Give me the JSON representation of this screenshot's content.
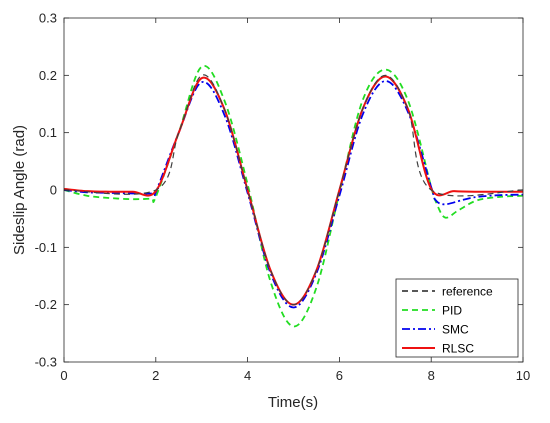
{
  "chart_data": {
    "type": "line",
    "xlabel": "Time(s)",
    "ylabel": "Sideslip Angle (rad)",
    "xlim": [
      0,
      10
    ],
    "ylim": [
      -0.3,
      0.3
    ],
    "xticks": [
      0,
      2,
      4,
      6,
      8,
      10
    ],
    "xtick_labels": [
      "0",
      "2",
      "4",
      "6",
      "8",
      "10"
    ],
    "yticks": [
      -0.3,
      -0.2,
      -0.1,
      0,
      0.1,
      0.2,
      0.3
    ],
    "ytick_labels": [
      "-0.3",
      "-0.2",
      "-0.1",
      "0",
      "0.1",
      "0.2",
      "0.3"
    ],
    "grid": false,
    "legend_position": "bottom-right",
    "series": [
      {
        "name": "reference",
        "color": "#404040",
        "dash": "dashed",
        "x": [
          0,
          2,
          2.5,
          3,
          3.5,
          4,
          4.5,
          5,
          5.5,
          6,
          6.5,
          7,
          7.5,
          8,
          10
        ],
        "y": [
          0,
          0,
          0.1,
          0.2,
          0.14,
          0,
          -0.14,
          -0.2,
          -0.14,
          0,
          0.14,
          0.2,
          0.14,
          0,
          0
        ]
      },
      {
        "name": "PID",
        "color": "#22dd22",
        "dash": "dashed",
        "x": [
          0,
          0.5,
          1,
          1.5,
          1.9,
          2,
          2.5,
          3,
          3.5,
          4,
          4.5,
          5,
          5.5,
          6,
          6.5,
          7,
          7.5,
          8,
          8.1,
          8.3,
          8.6,
          9,
          9.5,
          10
        ],
        "y": [
          0,
          -0.01,
          -0.014,
          -0.016,
          -0.015,
          -0.012,
          0.1,
          0.215,
          0.155,
          0.01,
          -0.16,
          -0.238,
          -0.17,
          -0.005,
          0.155,
          0.21,
          0.155,
          0.005,
          -0.02,
          -0.048,
          -0.035,
          -0.018,
          -0.012,
          -0.01
        ]
      },
      {
        "name": "SMC",
        "color": "#0000ee",
        "dash": "dashdot",
        "x": [
          0,
          0.5,
          1,
          1.5,
          1.95,
          2,
          2.5,
          3,
          3.5,
          4,
          4.5,
          5,
          5.5,
          6,
          6.5,
          7,
          7.5,
          8,
          8.1,
          8.3,
          8.7,
          9,
          9.5,
          10
        ],
        "y": [
          0,
          -0.004,
          -0.005,
          -0.006,
          -0.006,
          -0.004,
          0.1,
          0.188,
          0.13,
          -0.005,
          -0.145,
          -0.205,
          -0.145,
          -0.01,
          0.13,
          0.19,
          0.135,
          0.005,
          -0.018,
          -0.025,
          -0.017,
          -0.012,
          -0.009,
          -0.008
        ]
      },
      {
        "name": "RLSC",
        "color": "#ee1111",
        "dash": "solid",
        "x": [
          0,
          0.5,
          1,
          1.5,
          2,
          2.5,
          3,
          3.5,
          4,
          4.5,
          5,
          5.5,
          6,
          6.5,
          7,
          7.5,
          8,
          8.5,
          9,
          10
        ],
        "y": [
          0.002,
          -0.002,
          -0.003,
          -0.003,
          -0.002,
          0.1,
          0.195,
          0.14,
          0,
          -0.14,
          -0.2,
          -0.14,
          0,
          0.14,
          0.198,
          0.14,
          0.002,
          -0.002,
          -0.003,
          -0.003
        ]
      }
    ]
  }
}
